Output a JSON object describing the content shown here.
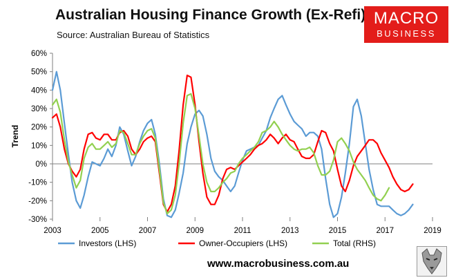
{
  "header": {
    "title": "Australian Housing Finance Growth (Ex-Refi)",
    "source": "Source: Australian Bureau of Statistics"
  },
  "logo": {
    "line1": "MACRO",
    "line2": "BUSINESS"
  },
  "footer": {
    "url": "www.macrobusiness.com.au"
  },
  "colors": {
    "investors": "#5b9bd5",
    "owner_occupiers": "#ff0000",
    "total": "#92d050",
    "logo_bg": "#e31d1a"
  },
  "chart_data": {
    "type": "line",
    "title": "Australian Housing Finance Growth (Ex-Refi)",
    "ylabel": "Trend",
    "ylim": [
      -30,
      60
    ],
    "xlim": [
      2003,
      2019
    ],
    "yticks": [
      "60%",
      "50%",
      "40%",
      "30%",
      "20%",
      "10%",
      "0%",
      "-10%",
      "-20%",
      "-30%"
    ],
    "ytick_values": [
      60,
      50,
      40,
      30,
      20,
      10,
      0,
      -10,
      -20,
      -30
    ],
    "xticks": [
      "2003",
      "2005",
      "2007",
      "2009",
      "2011",
      "2013",
      "2015",
      "2017",
      "2019"
    ],
    "xtick_values": [
      2003,
      2005,
      2007,
      2009,
      2011,
      2013,
      2015,
      2017,
      2019
    ],
    "grid": false,
    "legend_position": "bottom",
    "series": [
      {
        "name": "Investors (LHS)",
        "color": "#5b9bd5",
        "points": [
          [
            2003.0,
            40
          ],
          [
            2003.17,
            50
          ],
          [
            2003.33,
            40
          ],
          [
            2003.5,
            22
          ],
          [
            2003.67,
            5
          ],
          [
            2003.83,
            -10
          ],
          [
            2004.0,
            -20
          ],
          [
            2004.17,
            -24
          ],
          [
            2004.33,
            -17
          ],
          [
            2004.5,
            -7
          ],
          [
            2004.67,
            1
          ],
          [
            2004.83,
            0
          ],
          [
            2005.0,
            -1
          ],
          [
            2005.17,
            3
          ],
          [
            2005.33,
            8
          ],
          [
            2005.5,
            4
          ],
          [
            2005.67,
            10
          ],
          [
            2005.83,
            20
          ],
          [
            2006.0,
            16
          ],
          [
            2006.17,
            7
          ],
          [
            2006.33,
            -1
          ],
          [
            2006.5,
            4
          ],
          [
            2006.67,
            12
          ],
          [
            2006.83,
            18
          ],
          [
            2007.0,
            22
          ],
          [
            2007.17,
            24
          ],
          [
            2007.33,
            16
          ],
          [
            2007.5,
            0
          ],
          [
            2007.67,
            -19
          ],
          [
            2007.83,
            -28
          ],
          [
            2008.0,
            -29
          ],
          [
            2008.17,
            -25
          ],
          [
            2008.33,
            -16
          ],
          [
            2008.5,
            -5
          ],
          [
            2008.67,
            11
          ],
          [
            2008.83,
            20
          ],
          [
            2009.0,
            27
          ],
          [
            2009.17,
            29
          ],
          [
            2009.33,
            26
          ],
          [
            2009.5,
            16
          ],
          [
            2009.67,
            3
          ],
          [
            2009.83,
            -4
          ],
          [
            2010.0,
            -7
          ],
          [
            2010.17,
            -9
          ],
          [
            2010.33,
            -12
          ],
          [
            2010.5,
            -15
          ],
          [
            2010.67,
            -12
          ],
          [
            2010.83,
            -5
          ],
          [
            2011.0,
            2
          ],
          [
            2011.17,
            7
          ],
          [
            2011.33,
            8
          ],
          [
            2011.5,
            9
          ],
          [
            2011.67,
            10
          ],
          [
            2011.83,
            14
          ],
          [
            2012.0,
            18
          ],
          [
            2012.17,
            25
          ],
          [
            2012.33,
            30
          ],
          [
            2012.5,
            35
          ],
          [
            2012.67,
            37
          ],
          [
            2012.83,
            32
          ],
          [
            2013.0,
            27
          ],
          [
            2013.17,
            23
          ],
          [
            2013.33,
            21
          ],
          [
            2013.5,
            19
          ],
          [
            2013.67,
            15
          ],
          [
            2013.83,
            17
          ],
          [
            2014.0,
            17
          ],
          [
            2014.17,
            15
          ],
          [
            2014.33,
            8
          ],
          [
            2014.5,
            -8
          ],
          [
            2014.67,
            -22
          ],
          [
            2014.83,
            -29
          ],
          [
            2015.0,
            -27
          ],
          [
            2015.17,
            -18
          ],
          [
            2015.33,
            -5
          ],
          [
            2015.5,
            11
          ],
          [
            2015.67,
            31
          ],
          [
            2015.83,
            35
          ],
          [
            2016.0,
            26
          ],
          [
            2016.17,
            11
          ],
          [
            2016.33,
            -3
          ],
          [
            2016.5,
            -14
          ],
          [
            2016.67,
            -22
          ],
          [
            2016.83,
            -23
          ],
          [
            2017.0,
            -23
          ],
          [
            2017.17,
            -23
          ],
          [
            2017.33,
            -25
          ],
          [
            2017.5,
            -27
          ],
          [
            2017.67,
            -28
          ],
          [
            2017.83,
            -27
          ],
          [
            2018.0,
            -25
          ],
          [
            2018.17,
            -22
          ]
        ]
      },
      {
        "name": "Owner-Occupiers (LHS)",
        "color": "#ff0000",
        "points": [
          [
            2003.0,
            25
          ],
          [
            2003.17,
            27
          ],
          [
            2003.33,
            20
          ],
          [
            2003.5,
            8
          ],
          [
            2003.67,
            0
          ],
          [
            2003.83,
            -4
          ],
          [
            2004.0,
            -7
          ],
          [
            2004.17,
            -3
          ],
          [
            2004.33,
            8
          ],
          [
            2004.5,
            16
          ],
          [
            2004.67,
            17
          ],
          [
            2004.83,
            14
          ],
          [
            2005.0,
            13
          ],
          [
            2005.17,
            16
          ],
          [
            2005.33,
            16
          ],
          [
            2005.5,
            13
          ],
          [
            2005.67,
            13
          ],
          [
            2005.83,
            17
          ],
          [
            2006.0,
            18
          ],
          [
            2006.17,
            15
          ],
          [
            2006.33,
            8
          ],
          [
            2006.5,
            5
          ],
          [
            2006.67,
            8
          ],
          [
            2006.83,
            12
          ],
          [
            2007.0,
            14
          ],
          [
            2007.17,
            15
          ],
          [
            2007.33,
            12
          ],
          [
            2007.5,
            -5
          ],
          [
            2007.67,
            -22
          ],
          [
            2007.83,
            -26
          ],
          [
            2008.0,
            -22
          ],
          [
            2008.17,
            -12
          ],
          [
            2008.33,
            7
          ],
          [
            2008.5,
            32
          ],
          [
            2008.67,
            48
          ],
          [
            2008.83,
            47
          ],
          [
            2009.0,
            32
          ],
          [
            2009.17,
            12
          ],
          [
            2009.33,
            -5
          ],
          [
            2009.5,
            -18
          ],
          [
            2009.67,
            -22
          ],
          [
            2009.83,
            -22
          ],
          [
            2010.0,
            -17
          ],
          [
            2010.17,
            -8
          ],
          [
            2010.33,
            -3
          ],
          [
            2010.5,
            -2
          ],
          [
            2010.67,
            -3
          ],
          [
            2010.83,
            -1
          ],
          [
            2011.0,
            1
          ],
          [
            2011.17,
            3
          ],
          [
            2011.33,
            5
          ],
          [
            2011.5,
            8
          ],
          [
            2011.67,
            10
          ],
          [
            2011.83,
            11
          ],
          [
            2012.0,
            13
          ],
          [
            2012.17,
            16
          ],
          [
            2012.33,
            14
          ],
          [
            2012.5,
            11
          ],
          [
            2012.67,
            14
          ],
          [
            2012.83,
            16
          ],
          [
            2013.0,
            13
          ],
          [
            2013.17,
            12
          ],
          [
            2013.33,
            8
          ],
          [
            2013.5,
            4
          ],
          [
            2013.67,
            3
          ],
          [
            2013.83,
            3
          ],
          [
            2014.0,
            5
          ],
          [
            2014.17,
            12
          ],
          [
            2014.33,
            18
          ],
          [
            2014.5,
            17
          ],
          [
            2014.67,
            11
          ],
          [
            2014.83,
            7
          ],
          [
            2015.0,
            -3
          ],
          [
            2015.17,
            -12
          ],
          [
            2015.33,
            -15
          ],
          [
            2015.5,
            -9
          ],
          [
            2015.67,
            -1
          ],
          [
            2015.83,
            4
          ],
          [
            2016.0,
            7
          ],
          [
            2016.17,
            10
          ],
          [
            2016.33,
            13
          ],
          [
            2016.5,
            13
          ],
          [
            2016.67,
            11
          ],
          [
            2016.83,
            6
          ],
          [
            2017.0,
            2
          ],
          [
            2017.17,
            -2
          ],
          [
            2017.33,
            -7
          ],
          [
            2017.5,
            -11
          ],
          [
            2017.67,
            -14
          ],
          [
            2017.83,
            -15
          ],
          [
            2018.0,
            -14
          ],
          [
            2018.17,
            -11
          ]
        ]
      },
      {
        "name": "Total (RHS)",
        "color": "#92d050",
        "points": [
          [
            2003.0,
            32
          ],
          [
            2003.17,
            35
          ],
          [
            2003.33,
            28
          ],
          [
            2003.5,
            13
          ],
          [
            2003.67,
            1
          ],
          [
            2003.83,
            -6
          ],
          [
            2004.0,
            -13
          ],
          [
            2004.17,
            -9
          ],
          [
            2004.33,
            3
          ],
          [
            2004.5,
            9
          ],
          [
            2004.67,
            11
          ],
          [
            2004.83,
            8
          ],
          [
            2005.0,
            8
          ],
          [
            2005.17,
            10
          ],
          [
            2005.33,
            12
          ],
          [
            2005.5,
            9
          ],
          [
            2005.67,
            11
          ],
          [
            2005.83,
            18
          ],
          [
            2006.0,
            17
          ],
          [
            2006.17,
            11
          ],
          [
            2006.33,
            5
          ],
          [
            2006.5,
            5
          ],
          [
            2006.67,
            11
          ],
          [
            2006.83,
            15
          ],
          [
            2007.0,
            18
          ],
          [
            2007.17,
            19
          ],
          [
            2007.33,
            14
          ],
          [
            2007.5,
            -3
          ],
          [
            2007.67,
            -21
          ],
          [
            2007.83,
            -27
          ],
          [
            2008.0,
            -25
          ],
          [
            2008.17,
            -17
          ],
          [
            2008.33,
            0
          ],
          [
            2008.5,
            22
          ],
          [
            2008.67,
            37
          ],
          [
            2008.83,
            38
          ],
          [
            2009.0,
            30
          ],
          [
            2009.17,
            15
          ],
          [
            2009.33,
            0
          ],
          [
            2009.5,
            -10
          ],
          [
            2009.67,
            -15
          ],
          [
            2009.83,
            -15
          ],
          [
            2010.0,
            -13
          ],
          [
            2010.17,
            -10
          ],
          [
            2010.33,
            -8
          ],
          [
            2010.5,
            -5
          ],
          [
            2010.67,
            -4
          ],
          [
            2010.83,
            0
          ],
          [
            2011.0,
            3
          ],
          [
            2011.17,
            5
          ],
          [
            2011.33,
            7
          ],
          [
            2011.5,
            9
          ],
          [
            2011.67,
            12
          ],
          [
            2011.83,
            17
          ],
          [
            2012.0,
            18
          ],
          [
            2012.17,
            20
          ],
          [
            2012.33,
            23
          ],
          [
            2012.5,
            20
          ],
          [
            2012.67,
            16
          ],
          [
            2012.83,
            13
          ],
          [
            2013.0,
            10
          ],
          [
            2013.17,
            8
          ],
          [
            2013.33,
            7
          ],
          [
            2013.5,
            8
          ],
          [
            2013.67,
            8
          ],
          [
            2013.83,
            9
          ],
          [
            2014.0,
            6
          ],
          [
            2014.17,
            -1
          ],
          [
            2014.33,
            -6
          ],
          [
            2014.5,
            -6
          ],
          [
            2014.67,
            -4
          ],
          [
            2014.83,
            2
          ],
          [
            2015.0,
            12
          ],
          [
            2015.17,
            14
          ],
          [
            2015.33,
            11
          ],
          [
            2015.5,
            7
          ],
          [
            2015.67,
            1
          ],
          [
            2015.83,
            -3
          ],
          [
            2016.0,
            -6
          ],
          [
            2016.17,
            -9
          ],
          [
            2016.33,
            -13
          ],
          [
            2016.5,
            -17
          ],
          [
            2016.67,
            -19
          ],
          [
            2016.83,
            -20
          ],
          [
            2017.0,
            -17
          ],
          [
            2017.17,
            -13
          ]
        ]
      }
    ]
  }
}
